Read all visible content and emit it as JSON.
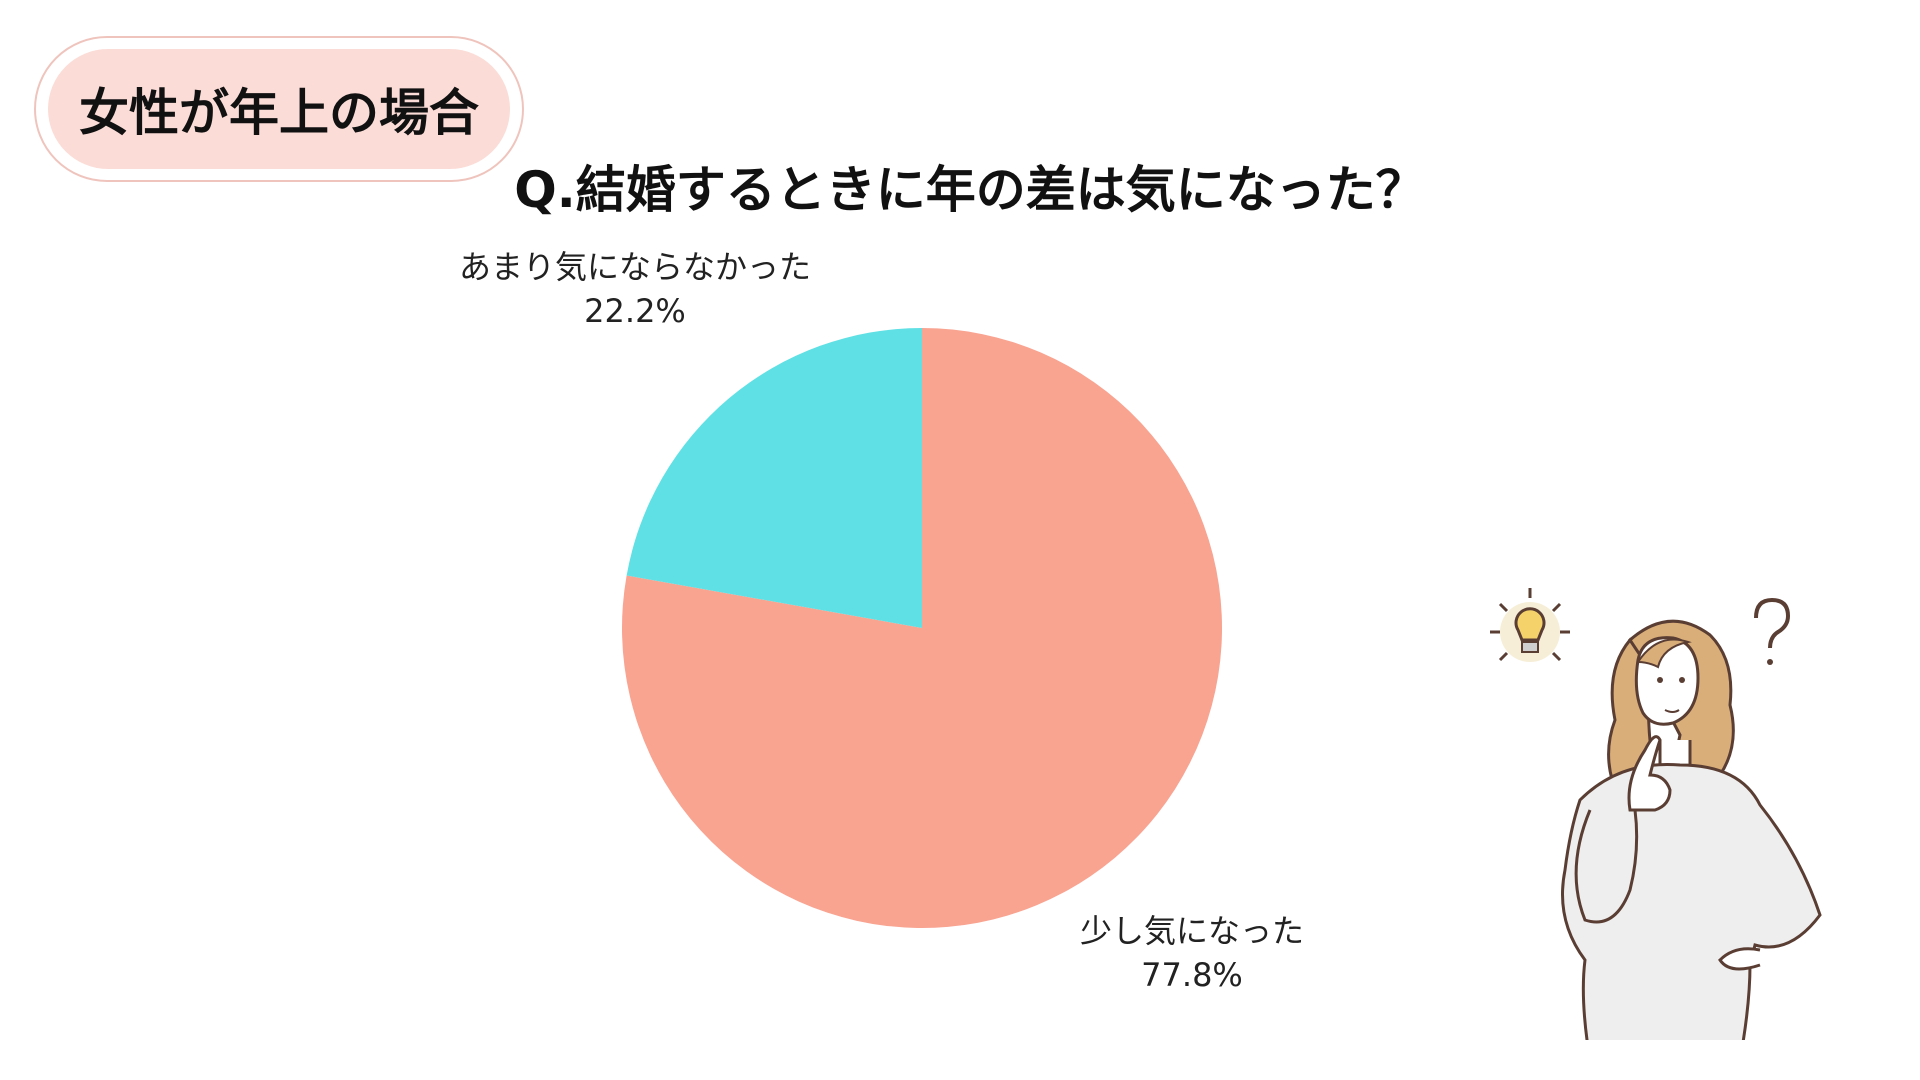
{
  "badge": {
    "label": "女性が年上の場合"
  },
  "chart_data": {
    "type": "pie",
    "title": "Q.結婚するときに年の差は気になった？",
    "slices": [
      {
        "label": "少し気になった",
        "value": 77.8,
        "display": "77.8%",
        "color": "#f9a391"
      },
      {
        "label": "あまり気にならなかった",
        "value": 22.2,
        "display": "22.2%",
        "color": "#5fe0e4"
      }
    ]
  },
  "colors": {
    "badge_bg": "#fbdcd7",
    "badge_border": "#efc4bd"
  },
  "illustration": {
    "icon": "thinking-woman-with-lightbulb-and-question-mark"
  }
}
